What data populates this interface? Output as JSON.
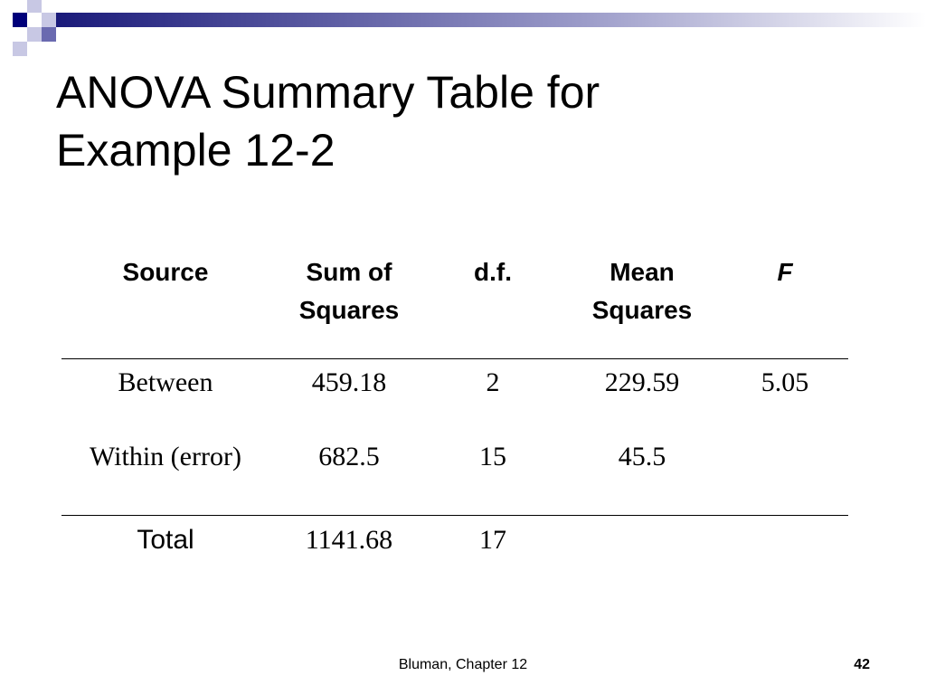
{
  "title": "ANOVA Summary Table for\nExample 12-2",
  "table": {
    "header": [
      "Source",
      "Sum of\nSquares",
      "d.f.",
      "Mean\nSquares",
      "F"
    ],
    "rows": [
      [
        "Between",
        "459.18",
        "2",
        "229.59",
        "5.05"
      ],
      [
        "Within (error)",
        "682.5",
        "15",
        "45.5"
      ],
      [
        "Total",
        "1141.68",
        "17"
      ]
    ]
  },
  "footer": "Bluman, Chapter 12",
  "page_number": "42"
}
